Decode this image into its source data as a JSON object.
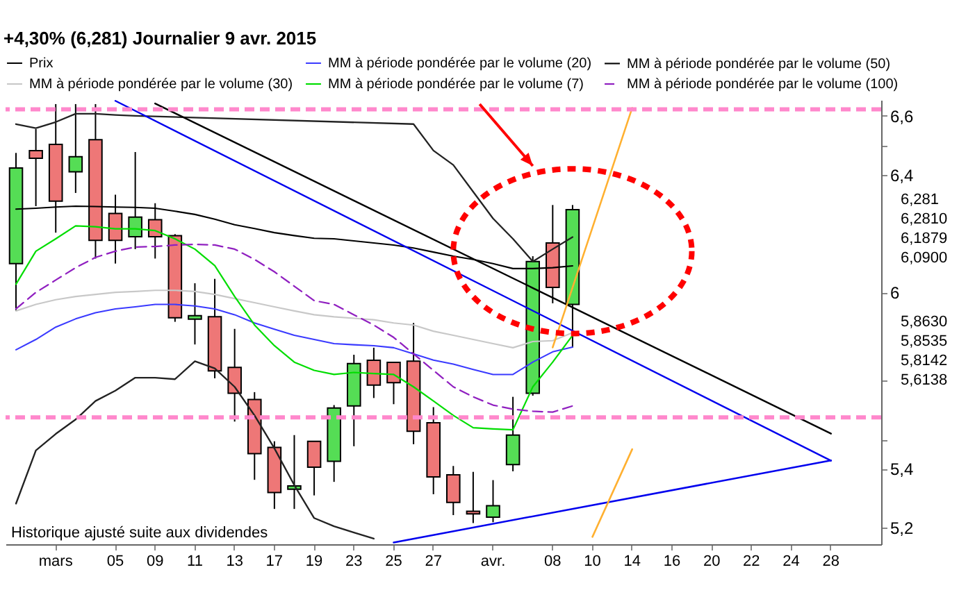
{
  "chart_data": {
    "type": "candlestick",
    "title": "+4,30% (6,281)   Journalier   9 avr. 2015",
    "categories": [
      null,
      null,
      "mars",
      null,
      null,
      "05",
      null,
      "09",
      null,
      "11",
      null,
      "13",
      null,
      "17",
      null,
      "19",
      null,
      "23",
      null,
      "25",
      null,
      "27",
      null,
      null,
      "avr.",
      null,
      null,
      "08",
      null,
      "10",
      null,
      "14",
      null,
      "16",
      null,
      "20",
      null,
      "22",
      null,
      "24",
      null,
      "28",
      null,
      null
    ],
    "ylim": [
      5.144,
      6.654
    ],
    "yticks": [
      {
        "value": 5.2,
        "label": "5,2"
      },
      {
        "value": 5.4,
        "label": "5,4"
      },
      {
        "value": 5.5,
        "label": null
      },
      {
        "value": 5.7,
        "label": null
      },
      6,
      {
        "value": 6.4,
        "label": "6,4"
      },
      {
        "value": 6.5,
        "label": null
      },
      {
        "value": 6.6,
        "label": "6,6"
      }
    ],
    "legend": "top",
    "series": [
      {
        "name": "Prix",
        "color": "#000000",
        "ohlc": [
          [
            6.098,
            6.474,
            5.939,
            6.423
          ],
          [
            6.482,
            6.555,
            6.293,
            6.456
          ],
          [
            6.503,
            6.64,
            6.203,
            6.31
          ],
          [
            6.41,
            6.64,
            6.338,
            6.461
          ],
          [
            6.519,
            6.64,
            6.115,
            6.177
          ],
          [
            6.268,
            6.332,
            6.098,
            6.177
          ],
          [
            6.189,
            6.477,
            6.147,
            6.256
          ],
          [
            6.247,
            6.303,
            6.115,
            6.189
          ],
          [
            6.193,
            6.198,
            5.9,
            5.914
          ],
          [
            5.909,
            6.031,
            5.823,
            5.921
          ],
          [
            5.917,
            6.046,
            5.708,
            5.733
          ],
          [
            5.745,
            5.876,
            5.561,
            5.657
          ],
          [
            5.636,
            5.661,
            5.363,
            5.452
          ],
          [
            5.473,
            5.494,
            5.264,
            5.32
          ],
          [
            5.331,
            5.515,
            5.264,
            5.342
          ],
          [
            5.494,
            5.494,
            5.31,
            5.406
          ],
          [
            5.426,
            5.617,
            5.356,
            5.607
          ],
          [
            5.614,
            5.788,
            5.477,
            5.758
          ],
          [
            5.769,
            5.812,
            5.641,
            5.685
          ],
          [
            5.762,
            5.762,
            5.62,
            5.693
          ],
          [
            5.766,
            5.896,
            5.484,
            5.528
          ],
          [
            5.557,
            5.61,
            5.314,
            5.373
          ],
          [
            5.38,
            5.41,
            5.243,
            5.286
          ],
          [
            5.256,
            5.39,
            5.216,
            5.247
          ],
          [
            5.236,
            5.362,
            5.219,
            5.275
          ],
          [
            5.415,
            5.645,
            5.392,
            5.515
          ],
          [
            5.657,
            6.123,
            5.649,
            6.105
          ],
          [
            6.168,
            6.297,
            5.963,
            6.017
          ],
          [
            5.959,
            6.297,
            5.812,
            6.281
          ],
          null,
          null,
          null,
          null,
          null,
          null,
          null,
          null,
          null,
          null,
          null,
          null,
          null,
          null,
          null
        ],
        "colors": [
          "#55dd55",
          "#ee7777",
          "#ee7777",
          "#55dd55",
          "#ee7777",
          "#ee7777",
          "#55dd55",
          "#ee7777",
          "#ee7777",
          "#55dd55",
          "#ee7777",
          "#ee7777",
          "#ee7777",
          "#ee7777",
          "#55dd55",
          "#ee7777",
          "#55dd55",
          "#55dd55",
          "#ee7777",
          "#ee7777",
          "#ee7777",
          "#ee7777",
          "#ee7777",
          "#ee7777",
          "#55dd55",
          "#55dd55",
          "#55dd55",
          "#ee7777",
          "#55dd55",
          null,
          null,
          null,
          null,
          null,
          null,
          null,
          null,
          null,
          null,
          null,
          null,
          null,
          null,
          null
        ]
      },
      {
        "name": "MM à période pondérée par le volume (20)",
        "type": "line",
        "color": "#3a3aff",
        "values": [
          5.805,
          5.84,
          5.882,
          5.91,
          5.931,
          5.944,
          5.951,
          5.959,
          5.959,
          5.954,
          5.944,
          5.924,
          5.896,
          5.875,
          5.854,
          5.84,
          5.826,
          5.822,
          5.819,
          5.812,
          5.791,
          5.77,
          5.756,
          5.738,
          5.721,
          5.721,
          5.763,
          5.798,
          5.814,
          null,
          null,
          null,
          null,
          null,
          null,
          null,
          null,
          null,
          null,
          null,
          null,
          null,
          null,
          null
        ]
      },
      {
        "name": "MM à période pondérée par le volume (50)",
        "type": "line",
        "color": "#000000",
        "values": [
          6.283,
          6.286,
          6.29,
          6.293,
          6.292,
          6.29,
          6.289,
          6.286,
          6.276,
          6.265,
          6.249,
          6.23,
          6.217,
          6.203,
          6.193,
          6.184,
          6.182,
          6.175,
          6.168,
          6.161,
          6.151,
          6.137,
          6.123,
          6.112,
          6.098,
          6.081,
          6.081,
          6.084,
          6.09,
          null,
          null,
          null,
          null,
          null,
          null,
          null,
          null,
          null,
          null,
          null,
          null,
          null,
          null,
          null
        ]
      },
      {
        "name": "MM à période pondérée par le volume (30)",
        "type": "line",
        "color": "#c8c8c8",
        "values": [
          5.937,
          5.959,
          5.975,
          5.986,
          5.993,
          6.0,
          6.003,
          6.007,
          6.007,
          6.003,
          5.993,
          5.979,
          5.965,
          5.951,
          5.937,
          5.924,
          5.917,
          5.912,
          5.907,
          5.896,
          5.889,
          5.868,
          5.854,
          5.84,
          5.826,
          5.812,
          5.833,
          5.836,
          5.863,
          null,
          null,
          null,
          null,
          null,
          null,
          null,
          null,
          null,
          null,
          null,
          null,
          null,
          null,
          null
        ]
      },
      {
        "name": "MM à période pondérée par le volume (7)",
        "type": "line",
        "color": "#00dd00",
        "values": [
          6.028,
          6.14,
          6.182,
          6.226,
          6.223,
          6.216,
          6.216,
          6.21,
          6.182,
          6.147,
          6.091,
          5.986,
          5.889,
          5.819,
          5.763,
          5.735,
          5.721,
          5.728,
          5.724,
          5.721,
          5.679,
          5.631,
          5.582,
          5.54,
          5.536,
          5.533,
          5.679,
          5.763,
          5.854,
          null,
          null,
          null,
          null,
          null,
          null,
          null,
          null,
          null,
          null,
          null,
          null,
          null,
          null,
          null
        ]
      },
      {
        "name": "MM à période pondérée par le volume (100)",
        "type": "line",
        "color": "#9020c0",
        "line_style": "dashed",
        "values": [
          5.944,
          6.0,
          6.042,
          6.084,
          6.119,
          6.14,
          6.154,
          6.156,
          6.161,
          6.163,
          6.161,
          6.147,
          6.112,
          6.07,
          6.021,
          5.972,
          5.959,
          5.924,
          5.889,
          5.847,
          5.791,
          5.735,
          5.679,
          5.645,
          5.617,
          5.603,
          5.596,
          5.593,
          5.614,
          null,
          null,
          null,
          null,
          null,
          null,
          null,
          null,
          null,
          null,
          null,
          null,
          null,
          null,
          null
        ]
      },
      {
        "type": "line",
        "color": "#222222",
        "values": [
          6.572,
          6.558,
          6.579,
          6.607,
          6.607,
          6.603,
          6.6,
          null,
          null,
          null,
          null,
          null,
          null,
          null,
          null,
          null,
          null,
          null,
          null,
          null,
          6.572,
          6.482,
          6.433,
          6.342,
          6.251,
          6.182,
          6.105,
          6.147,
          6.188,
          null,
          null,
          null,
          null,
          null,
          null,
          null,
          null,
          null,
          null,
          null,
          null,
          null,
          null,
          null
        ]
      },
      {
        "type": "line",
        "color": "#222222",
        "values": [
          5.282,
          5.463,
          5.519,
          5.568,
          5.631,
          5.666,
          5.71,
          5.71,
          5.705,
          5.766,
          5.742,
          5.679,
          5.582,
          5.47,
          5.345,
          5.233,
          5.205,
          5.184,
          5.163,
          null,
          null,
          null,
          null,
          null,
          null,
          null,
          null,
          null,
          null,
          null,
          null,
          null,
          null,
          null,
          null,
          null,
          null,
          null,
          null,
          null,
          null,
          null,
          null,
          null
        ]
      },
      {
        "type": "line",
        "color": "#0000ee",
        "x": [
          "05",
          "28"
        ],
        "values": [
          6.651,
          5.428
        ]
      },
      {
        "type": "line",
        "color": "#000000",
        "x": [
          "09",
          "28"
        ],
        "values": [
          6.642,
          5.52
        ]
      },
      {
        "type": "line",
        "color": "#0000ee",
        "x": [
          "25",
          "28"
        ],
        "values": [
          5.15,
          5.429
        ]
      },
      {
        "type": "line",
        "color": "#ffb030",
        "x": [
          "08",
          "14"
        ],
        "values": [
          5.813,
          6.627
        ]
      },
      {
        "type": "line",
        "color": "#ffb030",
        "x": [
          "10",
          "14"
        ],
        "values": [
          5.169,
          5.467
        ]
      }
    ],
    "ref_lines": [
      {
        "axis": "y",
        "value": 6.622,
        "color": "#ff88cc",
        "line_style": "dashed"
      },
      {
        "axis": "y",
        "value": 5.575,
        "color": "#ff88cc",
        "line_style": "dashed"
      }
    ],
    "annotations": [
      "Historique ajusté suite aux dividendes",
      "6,281",
      "6,2810",
      "6,1879",
      "6,0900",
      "5,8630",
      "5,8535",
      "5,8142",
      "5,6138"
    ]
  }
}
